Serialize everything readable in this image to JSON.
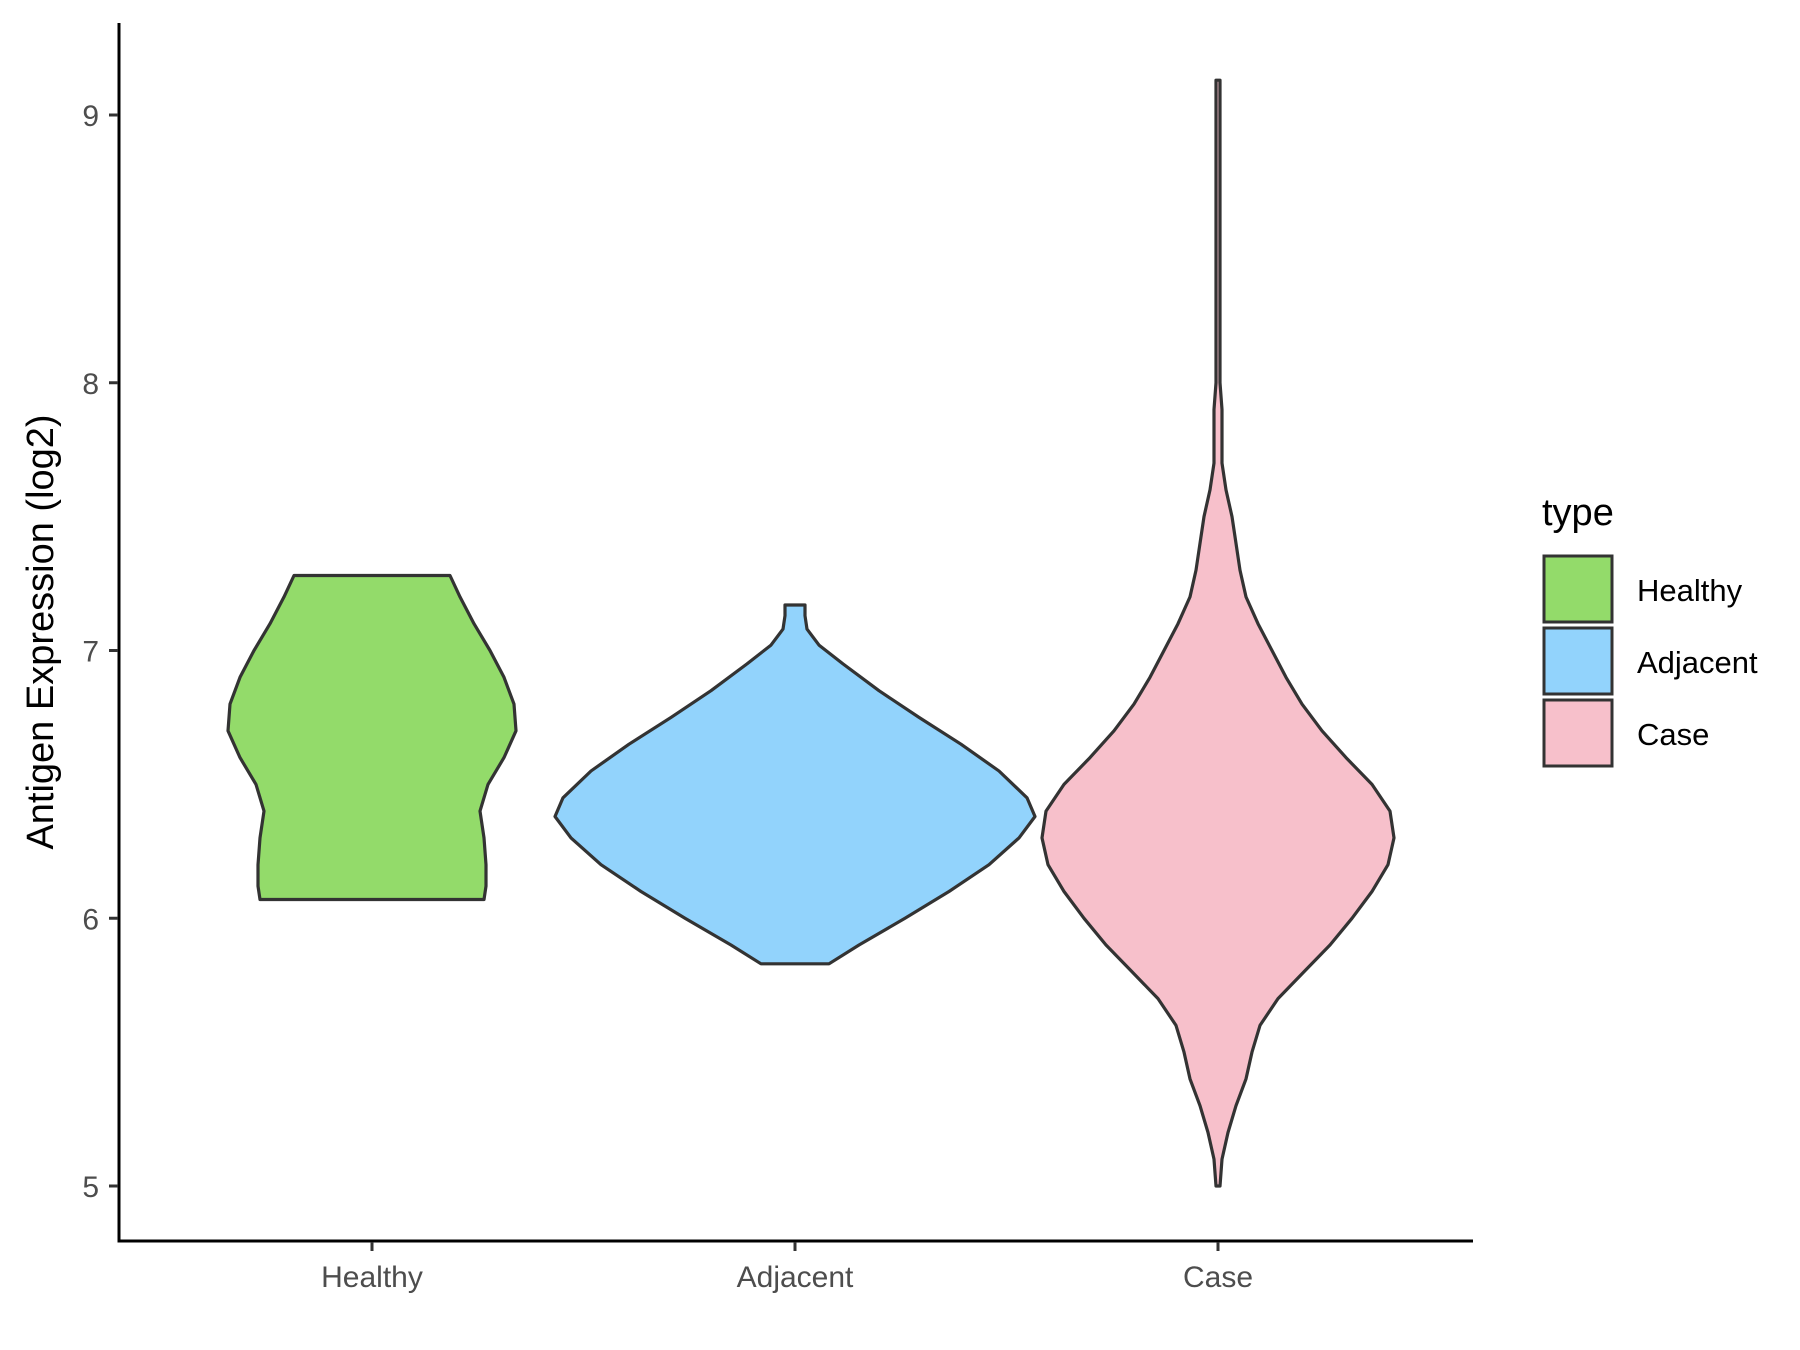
{
  "chart_data": {
    "type": "violin",
    "title": "",
    "xlabel": "",
    "ylabel": "Antigen Expression (log2)",
    "ylim": [
      4.8,
      9.35
    ],
    "yticks": [
      5,
      6,
      7,
      8,
      9
    ],
    "grid": false,
    "categories": [
      "Healthy",
      "Adjacent",
      "Case"
    ],
    "legend": {
      "title": "type",
      "placement": "right",
      "entries": [
        "Healthy",
        "Adjacent",
        "Case"
      ]
    },
    "series": [
      {
        "category": "Healthy",
        "color": "#93db6a",
        "min": 6.07,
        "max": 7.28,
        "profile": [
          [
            6.07,
            0.56
          ],
          [
            6.12,
            0.57
          ],
          [
            6.2,
            0.57
          ],
          [
            6.3,
            0.56
          ],
          [
            6.4,
            0.54
          ],
          [
            6.5,
            0.58
          ],
          [
            6.6,
            0.66
          ],
          [
            6.7,
            0.72
          ],
          [
            6.8,
            0.71
          ],
          [
            6.9,
            0.66
          ],
          [
            7.0,
            0.59
          ],
          [
            7.1,
            0.51
          ],
          [
            7.2,
            0.44
          ],
          [
            7.28,
            0.39
          ]
        ]
      },
      {
        "category": "Adjacent",
        "color": "#92d3fc",
        "min": 5.83,
        "max": 7.17,
        "profile": [
          [
            5.83,
            0.17
          ],
          [
            5.9,
            0.32
          ],
          [
            6.0,
            0.55
          ],
          [
            6.1,
            0.77
          ],
          [
            6.2,
            0.97
          ],
          [
            6.3,
            1.12
          ],
          [
            6.38,
            1.2
          ],
          [
            6.45,
            1.16
          ],
          [
            6.55,
            1.02
          ],
          [
            6.65,
            0.83
          ],
          [
            6.75,
            0.62
          ],
          [
            6.85,
            0.42
          ],
          [
            6.95,
            0.24
          ],
          [
            7.02,
            0.12
          ],
          [
            7.08,
            0.06
          ],
          [
            7.13,
            0.05
          ],
          [
            7.17,
            0.05
          ]
        ]
      },
      {
        "category": "Case",
        "color": "#f7c0cb",
        "min": 5.0,
        "max": 9.13,
        "profile": [
          [
            5.0,
            0.01
          ],
          [
            5.1,
            0.02
          ],
          [
            5.2,
            0.05
          ],
          [
            5.3,
            0.09
          ],
          [
            5.4,
            0.14
          ],
          [
            5.5,
            0.17
          ],
          [
            5.6,
            0.21
          ],
          [
            5.7,
            0.3
          ],
          [
            5.8,
            0.43
          ],
          [
            5.9,
            0.56
          ],
          [
            6.0,
            0.67
          ],
          [
            6.1,
            0.77
          ],
          [
            6.2,
            0.85
          ],
          [
            6.3,
            0.88
          ],
          [
            6.4,
            0.86
          ],
          [
            6.5,
            0.77
          ],
          [
            6.6,
            0.64
          ],
          [
            6.7,
            0.52
          ],
          [
            6.8,
            0.42
          ],
          [
            6.9,
            0.34
          ],
          [
            7.0,
            0.27
          ],
          [
            7.1,
            0.2
          ],
          [
            7.2,
            0.14
          ],
          [
            7.3,
            0.11
          ],
          [
            7.4,
            0.09
          ],
          [
            7.5,
            0.07
          ],
          [
            7.6,
            0.04
          ],
          [
            7.7,
            0.02
          ],
          [
            7.8,
            0.02
          ],
          [
            7.9,
            0.02
          ],
          [
            8.0,
            0.01
          ],
          [
            8.3,
            0.01
          ],
          [
            8.6,
            0.01
          ],
          [
            8.9,
            0.01
          ],
          [
            9.13,
            0.01
          ]
        ]
      }
    ]
  }
}
